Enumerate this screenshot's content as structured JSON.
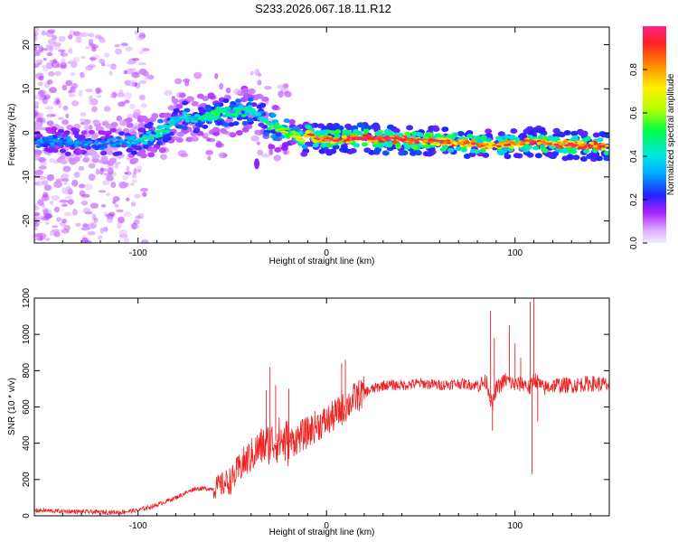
{
  "title": "S233.2026.067.18.11.R12",
  "colors": {
    "snr_line": "#ee2222",
    "background": "#ffffff"
  },
  "chart_data": [
    {
      "type": "heatmap",
      "name": "spectrogram",
      "xlabel": "Height of straight line (km)",
      "ylabel": "Frequency (Hz)",
      "xlim": [
        -155,
        150
      ],
      "ylim": [
        -25,
        24
      ],
      "x_ticks": [
        -100,
        0,
        100
      ],
      "y_ticks": [
        20,
        10,
        0,
        -10,
        -20
      ],
      "x_tick_labels": [
        "-100",
        "0",
        "100"
      ],
      "y_tick_labels": [
        "20",
        "10",
        "0",
        "-10",
        "-20"
      ],
      "colorbar": {
        "label": "Normalized spectral amplitude",
        "range": [
          0,
          1
        ],
        "ticks": [
          0.0,
          0.2,
          0.4,
          0.6,
          0.8
        ],
        "tick_labels": [
          "0.0",
          "0.2",
          "0.4",
          "0.6",
          "0.8"
        ]
      },
      "ridge": {
        "x": [
          -155,
          -140,
          -120,
          -105,
          -100,
          -95,
          -90,
          -85,
          -80,
          -75,
          -70,
          -65,
          -60,
          -55,
          -50,
          -45,
          -40,
          -35,
          -30,
          -25,
          -20,
          -15,
          -12,
          -10,
          -5,
          0,
          10,
          20,
          40,
          60,
          80,
          90,
          100,
          110,
          120,
          150
        ],
        "y": [
          -2,
          -2,
          -2.5,
          -2,
          -2,
          -1,
          0,
          1,
          3,
          4,
          3,
          3.5,
          4,
          5,
          4,
          5,
          5,
          4,
          1.5,
          1,
          0,
          -1,
          -2,
          0,
          -1.5,
          -1.5,
          -1.5,
          -1.2,
          -1.5,
          -2,
          -2.5,
          -3,
          -2.5,
          -2,
          -2.5,
          -3
        ],
        "intensity": [
          0.3,
          0.3,
          0.3,
          0.35,
          0.4,
          0.45,
          0.5,
          0.45,
          0.4,
          0.45,
          0.4,
          0.45,
          0.5,
          0.5,
          0.45,
          0.5,
          0.45,
          0.4,
          0.5,
          0.6,
          0.65,
          0.7,
          0.75,
          0.8,
          0.85,
          0.9,
          0.95,
          0.95,
          0.95,
          0.9,
          0.85,
          0.8,
          0.85,
          0.9,
          0.9,
          0.9
        ]
      }
    },
    {
      "type": "line",
      "name": "snr",
      "xlabel": "Height of straight line (km)",
      "ylabel": "SNR (10 * v/v)",
      "xlim": [
        -155,
        150
      ],
      "ylim": [
        0,
        1200
      ],
      "x_ticks": [
        -100,
        0,
        100
      ],
      "y_ticks": [
        0,
        200,
        400,
        600,
        800,
        1000,
        1200
      ],
      "x_tick_labels": [
        "-100",
        "0",
        "100"
      ],
      "y_tick_labels": [
        "0",
        "200",
        "400",
        "600",
        "800",
        "1000",
        "1200"
      ],
      "series": [
        {
          "name": "SNR",
          "x": [
            -155,
            -140,
            -120,
            -110,
            -100,
            -90,
            -80,
            -70,
            -60,
            -50,
            -45,
            -40,
            -35,
            -30,
            -25,
            -20,
            -15,
            -10,
            -5,
            0,
            5,
            10,
            15,
            20,
            25,
            30,
            40,
            50,
            60,
            70,
            80,
            85,
            88,
            90,
            95,
            100,
            105,
            108,
            110,
            115,
            120,
            130,
            140,
            150
          ],
          "values": [
            30,
            25,
            20,
            20,
            30,
            60,
            100,
            150,
            150,
            200,
            280,
            330,
            380,
            400,
            420,
            400,
            430,
            460,
            500,
            520,
            560,
            600,
            650,
            680,
            700,
            720,
            720,
            730,
            720,
            730,
            720,
            740,
            600,
            700,
            750,
            720,
            730,
            700,
            760,
            700,
            720,
            720,
            730,
            720
          ],
          "spikes": [
            {
              "x": -30,
              "y": 820
            },
            {
              "x": -27,
              "y": 720
            },
            {
              "x": -32,
              "y": 690
            },
            {
              "x": -20,
              "y": 700
            },
            {
              "x": 8,
              "y": 840
            },
            {
              "x": 10,
              "y": 860
            },
            {
              "x": 87,
              "y": 1130
            },
            {
              "x": 89,
              "y": 980
            },
            {
              "x": 88,
              "y": 470
            },
            {
              "x": 97,
              "y": 1050
            },
            {
              "x": 100,
              "y": 950
            },
            {
              "x": 103,
              "y": 870
            },
            {
              "x": 108,
              "y": 1180
            },
            {
              "x": 110,
              "y": 1210
            },
            {
              "x": 109,
              "y": 230
            },
            {
              "x": 112,
              "y": 520
            }
          ]
        }
      ]
    }
  ]
}
